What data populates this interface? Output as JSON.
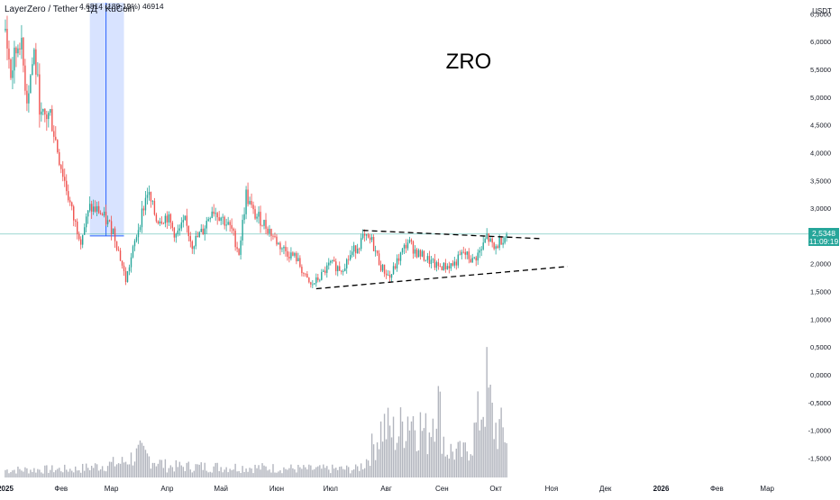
{
  "header": {
    "symbol_title": "LayerZero / Tether · 1Д · KuCoin",
    "measure_label": "4,6814 (189,19%) 46914"
  },
  "chart_data": {
    "type": "candlestick",
    "title": "ZRO",
    "currency": "USDT",
    "last_price": "2,5348",
    "countdown": "11:09:19",
    "y_range": [
      -1.85,
      6.75
    ],
    "y_ticks": [
      "-1,5000",
      "-1,0000",
      "-0,5000",
      "0,0000",
      "0,5000",
      "1,0000",
      "1,5000",
      "2,0000",
      "2,5000",
      "3,0000",
      "3,5000",
      "4,0000",
      "4,5000",
      "5,0000",
      "5,5000",
      "6,0000",
      "6,5000"
    ],
    "y_tick_values": [
      -1.5,
      -1.0,
      -0.5,
      0.0,
      0.5,
      1.0,
      1.5,
      2.0,
      2.5,
      3.0,
      3.5,
      4.0,
      4.5,
      5.0,
      5.5,
      6.0,
      6.5
    ],
    "x_labels": [
      "2025",
      "Фев",
      "Мар",
      "Апр",
      "Май",
      "Июн",
      "Июл",
      "Авг",
      "Сен",
      "Окт",
      "Ноя",
      "Дек",
      "2026",
      "Фев",
      "Мар"
    ],
    "x_label_days": [
      0,
      31,
      59,
      90,
      120,
      151,
      181,
      212,
      243,
      273,
      304,
      334,
      365,
      396,
      424
    ],
    "days_visible": [
      -3,
      445
    ],
    "price_keypoints": [
      {
        "day": 0,
        "close": 6.2
      },
      {
        "day": 3,
        "close": 5.4
      },
      {
        "day": 8,
        "close": 6.1
      },
      {
        "day": 12,
        "close": 5.0
      },
      {
        "day": 16,
        "close": 5.8
      },
      {
        "day": 20,
        "close": 4.6
      },
      {
        "day": 25,
        "close": 4.7
      },
      {
        "day": 30,
        "close": 3.9
      },
      {
        "day": 38,
        "close": 2.8
      },
      {
        "day": 42,
        "close": 2.45
      },
      {
        "day": 47,
        "close": 3.0
      },
      {
        "day": 52,
        "close": 2.95
      },
      {
        "day": 60,
        "close": 2.6
      },
      {
        "day": 64,
        "close": 2.1
      },
      {
        "day": 67,
        "close": 1.7
      },
      {
        "day": 70,
        "close": 2.1
      },
      {
        "day": 74,
        "close": 2.65
      },
      {
        "day": 79,
        "close": 3.3
      },
      {
        "day": 84,
        "close": 2.8
      },
      {
        "day": 90,
        "close": 2.85
      },
      {
        "day": 95,
        "close": 2.5
      },
      {
        "day": 100,
        "close": 2.75
      },
      {
        "day": 104,
        "close": 2.35
      },
      {
        "day": 110,
        "close": 2.6
      },
      {
        "day": 115,
        "close": 3.0
      },
      {
        "day": 120,
        "close": 2.85
      },
      {
        "day": 126,
        "close": 2.6
      },
      {
        "day": 130,
        "close": 2.2
      },
      {
        "day": 134,
        "close": 3.25
      },
      {
        "day": 138,
        "close": 2.9
      },
      {
        "day": 142,
        "close": 2.8
      },
      {
        "day": 147,
        "close": 2.6
      },
      {
        "day": 152,
        "close": 2.35
      },
      {
        "day": 157,
        "close": 2.2
      },
      {
        "day": 162,
        "close": 2.1
      },
      {
        "day": 167,
        "close": 1.75
      },
      {
        "day": 170,
        "close": 1.6
      },
      {
        "day": 175,
        "close": 1.75
      },
      {
        "day": 181,
        "close": 2.0
      },
      {
        "day": 187,
        "close": 1.9
      },
      {
        "day": 193,
        "close": 2.2
      },
      {
        "day": 199,
        "close": 2.45
      },
      {
        "day": 204,
        "close": 2.4
      },
      {
        "day": 209,
        "close": 1.95
      },
      {
        "day": 214,
        "close": 1.75
      },
      {
        "day": 219,
        "close": 2.1
      },
      {
        "day": 224,
        "close": 2.4
      },
      {
        "day": 229,
        "close": 2.2
      },
      {
        "day": 234,
        "close": 2.1
      },
      {
        "day": 240,
        "close": 1.95
      },
      {
        "day": 245,
        "close": 1.95
      },
      {
        "day": 250,
        "close": 2.0
      },
      {
        "day": 255,
        "close": 2.2
      },
      {
        "day": 260,
        "close": 2.05
      },
      {
        "day": 265,
        "close": 2.25
      },
      {
        "day": 268,
        "close": 2.5
      },
      {
        "day": 272,
        "close": 2.25
      },
      {
        "day": 276,
        "close": 2.45
      },
      {
        "day": 279,
        "close": 2.53
      }
    ],
    "volume_keypoints": [
      {
        "day": 0,
        "volume": 0.08
      },
      {
        "day": 40,
        "volume": 0.09
      },
      {
        "day": 65,
        "volume": 0.16
      },
      {
        "day": 75,
        "volume": 0.26
      },
      {
        "day": 90,
        "volume": 0.12
      },
      {
        "day": 130,
        "volume": 0.11
      },
      {
        "day": 170,
        "volume": 0.09
      },
      {
        "day": 195,
        "volume": 0.09
      },
      {
        "day": 200,
        "volume": 0.15
      },
      {
        "day": 210,
        "volume": 0.55
      },
      {
        "day": 218,
        "volume": 0.45
      },
      {
        "day": 225,
        "volume": 0.7
      },
      {
        "day": 235,
        "volume": 0.45
      },
      {
        "day": 240,
        "volume": 0.9
      },
      {
        "day": 245,
        "volume": 0.3
      },
      {
        "day": 255,
        "volume": 0.25
      },
      {
        "day": 260,
        "volume": 0.4
      },
      {
        "day": 268,
        "volume": 0.95
      },
      {
        "day": 272,
        "volume": 0.55
      },
      {
        "day": 279,
        "volume": 0.45
      }
    ],
    "volume_baseline": -1.85,
    "volume_max_height": 2.1,
    "measure_range": {
      "start_day": 47,
      "end_day": 66,
      "mid_day": 56,
      "low": 2.5,
      "high": 6.7
    },
    "trendlines": [
      {
        "name": "upper-resistance",
        "from": {
          "day": 199,
          "value": 2.6
        },
        "to": {
          "day": 299,
          "value": 2.45
        }
      },
      {
        "name": "lower-support",
        "from": {
          "day": 173,
          "value": 1.55
        },
        "to": {
          "day": 313,
          "value": 1.95
        }
      }
    ],
    "current_price_value": 2.5348,
    "colors": {
      "up": "#26a69a",
      "down": "#ef5350",
      "volume": "#b2b5be",
      "price_line": "#26a69a",
      "measure_fill": "#2962ff",
      "grid_text": "#131722"
    }
  }
}
